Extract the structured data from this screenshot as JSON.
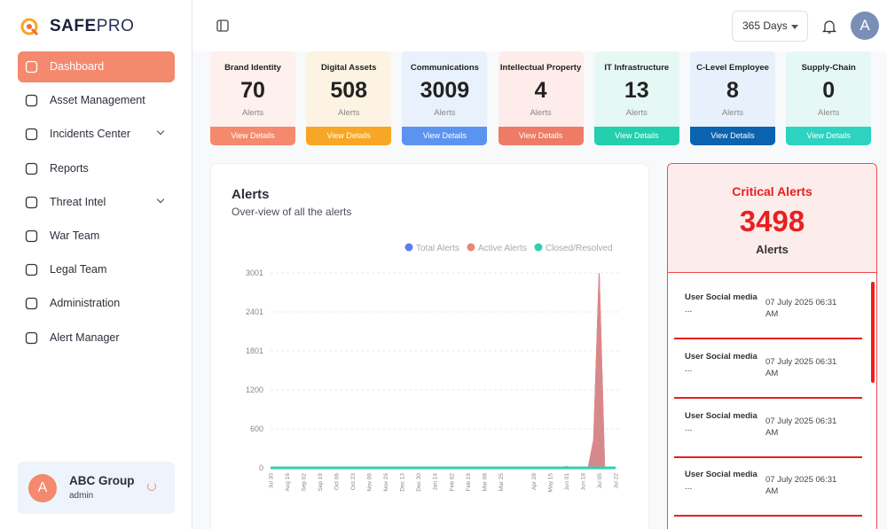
{
  "brand": {
    "name_a": "SAFE",
    "name_b": "PRO"
  },
  "nav": [
    {
      "label": "Dashboard",
      "active": true
    },
    {
      "label": "Asset Management"
    },
    {
      "label": "Incidents Center",
      "expandable": true
    },
    {
      "label": "Reports"
    },
    {
      "label": "Threat Intel",
      "expandable": true
    },
    {
      "label": "War Team"
    },
    {
      "label": "Legal Team"
    },
    {
      "label": "Administration"
    },
    {
      "label": "Alert Manager"
    }
  ],
  "user": {
    "avatar": "A",
    "name": "ABC Group",
    "role": "admin"
  },
  "toolbar": {
    "range": "365 Days",
    "avatar": "A"
  },
  "cards": [
    {
      "title": "Brand Identity",
      "value": 70,
      "unit": "Alerts",
      "action": "View Details",
      "bg": "#fdf0ed",
      "color": "#f4896d"
    },
    {
      "title": "Digital Assets",
      "value": 508,
      "unit": "Alerts",
      "action": "View Details",
      "bg": "#fdf3e3",
      "color": "#f7a625"
    },
    {
      "title": "Communications",
      "value": 3009,
      "unit": "Alerts",
      "action": "View Details",
      "bg": "#e9f1fd",
      "color": "#5b93f0"
    },
    {
      "title": "Intellectual Property",
      "value": 4,
      "unit": "Alerts",
      "action": "View Details",
      "bg": "#fdecea",
      "color": "#ee7b66"
    },
    {
      "title": "IT Infrastructure",
      "value": 13,
      "unit": "Alerts",
      "action": "View Details",
      "bg": "#e6f8f4",
      "color": "#22cfae"
    },
    {
      "title": "C-Level Employee",
      "value": 8,
      "unit": "Alerts",
      "action": "View Details",
      "bg": "#e8f1fb",
      "color": "#0b62af"
    },
    {
      "title": "Supply-Chain",
      "value": 0,
      "unit": "Alerts",
      "action": "View Details",
      "bg": "#e6f8f6",
      "color": "#2bd3c0"
    }
  ],
  "chart_data": {
    "type": "area",
    "title": "Alerts",
    "subtitle": "Over-view of all the alerts",
    "categories": [
      "Jul 30",
      null,
      null,
      "Aug 16",
      null,
      null,
      "Sep 02",
      null,
      null,
      "Sep 19",
      null,
      null,
      "Oct 06",
      null,
      null,
      "Oct 23",
      null,
      null,
      "Nov 09",
      null,
      null,
      "Nov 26",
      null,
      null,
      "Dec 13",
      null,
      null,
      "Dec 30",
      null,
      null,
      "Jan 14",
      null,
      null,
      "Feb 02",
      null,
      null,
      "Feb 19",
      null,
      null,
      "Mar 08",
      null,
      null,
      "Mar 25",
      null,
      null,
      null,
      null,
      null,
      "Apr 28",
      null,
      null,
      "May 15",
      null,
      null,
      "Jun 01",
      null,
      null,
      "Jun 18",
      null,
      null,
      "Jul 05",
      null,
      null,
      "Jul 22"
    ],
    "series": [
      {
        "name": "Total Alerts",
        "color": "#5b7ff0",
        "values": [
          0,
          0,
          0,
          0,
          0,
          0,
          0,
          0,
          0,
          0,
          0,
          0,
          0,
          0,
          0,
          0,
          0,
          0,
          0,
          0,
          0,
          0,
          0,
          0,
          0,
          0,
          0,
          0,
          0,
          0,
          0,
          0,
          0,
          0,
          0,
          0,
          0,
          0,
          0,
          0,
          0,
          0,
          0,
          0,
          0,
          0,
          0,
          0,
          0,
          0,
          0,
          0,
          0,
          0,
          20,
          0,
          0,
          0,
          0,
          430,
          3001,
          0,
          0,
          0
        ]
      },
      {
        "name": "Active Alerts",
        "color": "#e8877a",
        "values": [
          0,
          0,
          0,
          0,
          0,
          0,
          0,
          0,
          0,
          0,
          0,
          0,
          0,
          0,
          0,
          0,
          0,
          0,
          0,
          0,
          0,
          0,
          0,
          0,
          0,
          0,
          0,
          0,
          0,
          0,
          0,
          0,
          0,
          0,
          0,
          0,
          0,
          0,
          0,
          0,
          0,
          0,
          0,
          0,
          0,
          0,
          0,
          0,
          0,
          0,
          0,
          0,
          0,
          0,
          20,
          0,
          0,
          0,
          0,
          430,
          3001,
          0,
          0,
          0
        ]
      },
      {
        "name": "Closed/Resolved",
        "color": "#2ed1b0",
        "values": [
          0,
          0,
          0,
          0,
          0,
          0,
          0,
          0,
          0,
          0,
          0,
          0,
          0,
          0,
          0,
          0,
          0,
          0,
          0,
          0,
          0,
          0,
          0,
          0,
          0,
          0,
          0,
          0,
          0,
          0,
          0,
          0,
          0,
          0,
          0,
          0,
          0,
          0,
          0,
          0,
          0,
          0,
          0,
          0,
          0,
          0,
          0,
          0,
          0,
          0,
          0,
          0,
          0,
          0,
          0,
          0,
          0,
          0,
          0,
          0,
          0,
          0,
          0,
          0
        ]
      }
    ],
    "ylim": [
      0,
      3001
    ],
    "yticks": [
      0,
      600,
      1200,
      1801,
      2401,
      3001
    ],
    "grid": true
  },
  "critical": {
    "title": "Critical Alerts",
    "value": 3498,
    "unit": "Alerts",
    "items": [
      {
        "name": "User Social media",
        "more": "...",
        "time": "07 July 2025 06:31 AM"
      },
      {
        "name": "User Social media",
        "more": "...",
        "time": "07 July 2025 06:31 AM"
      },
      {
        "name": "User Social media",
        "more": "...",
        "time": "07 July 2025 06:31 AM"
      },
      {
        "name": "User Social media",
        "more": "...",
        "time": "07 July 2025 06:31 AM"
      }
    ]
  }
}
